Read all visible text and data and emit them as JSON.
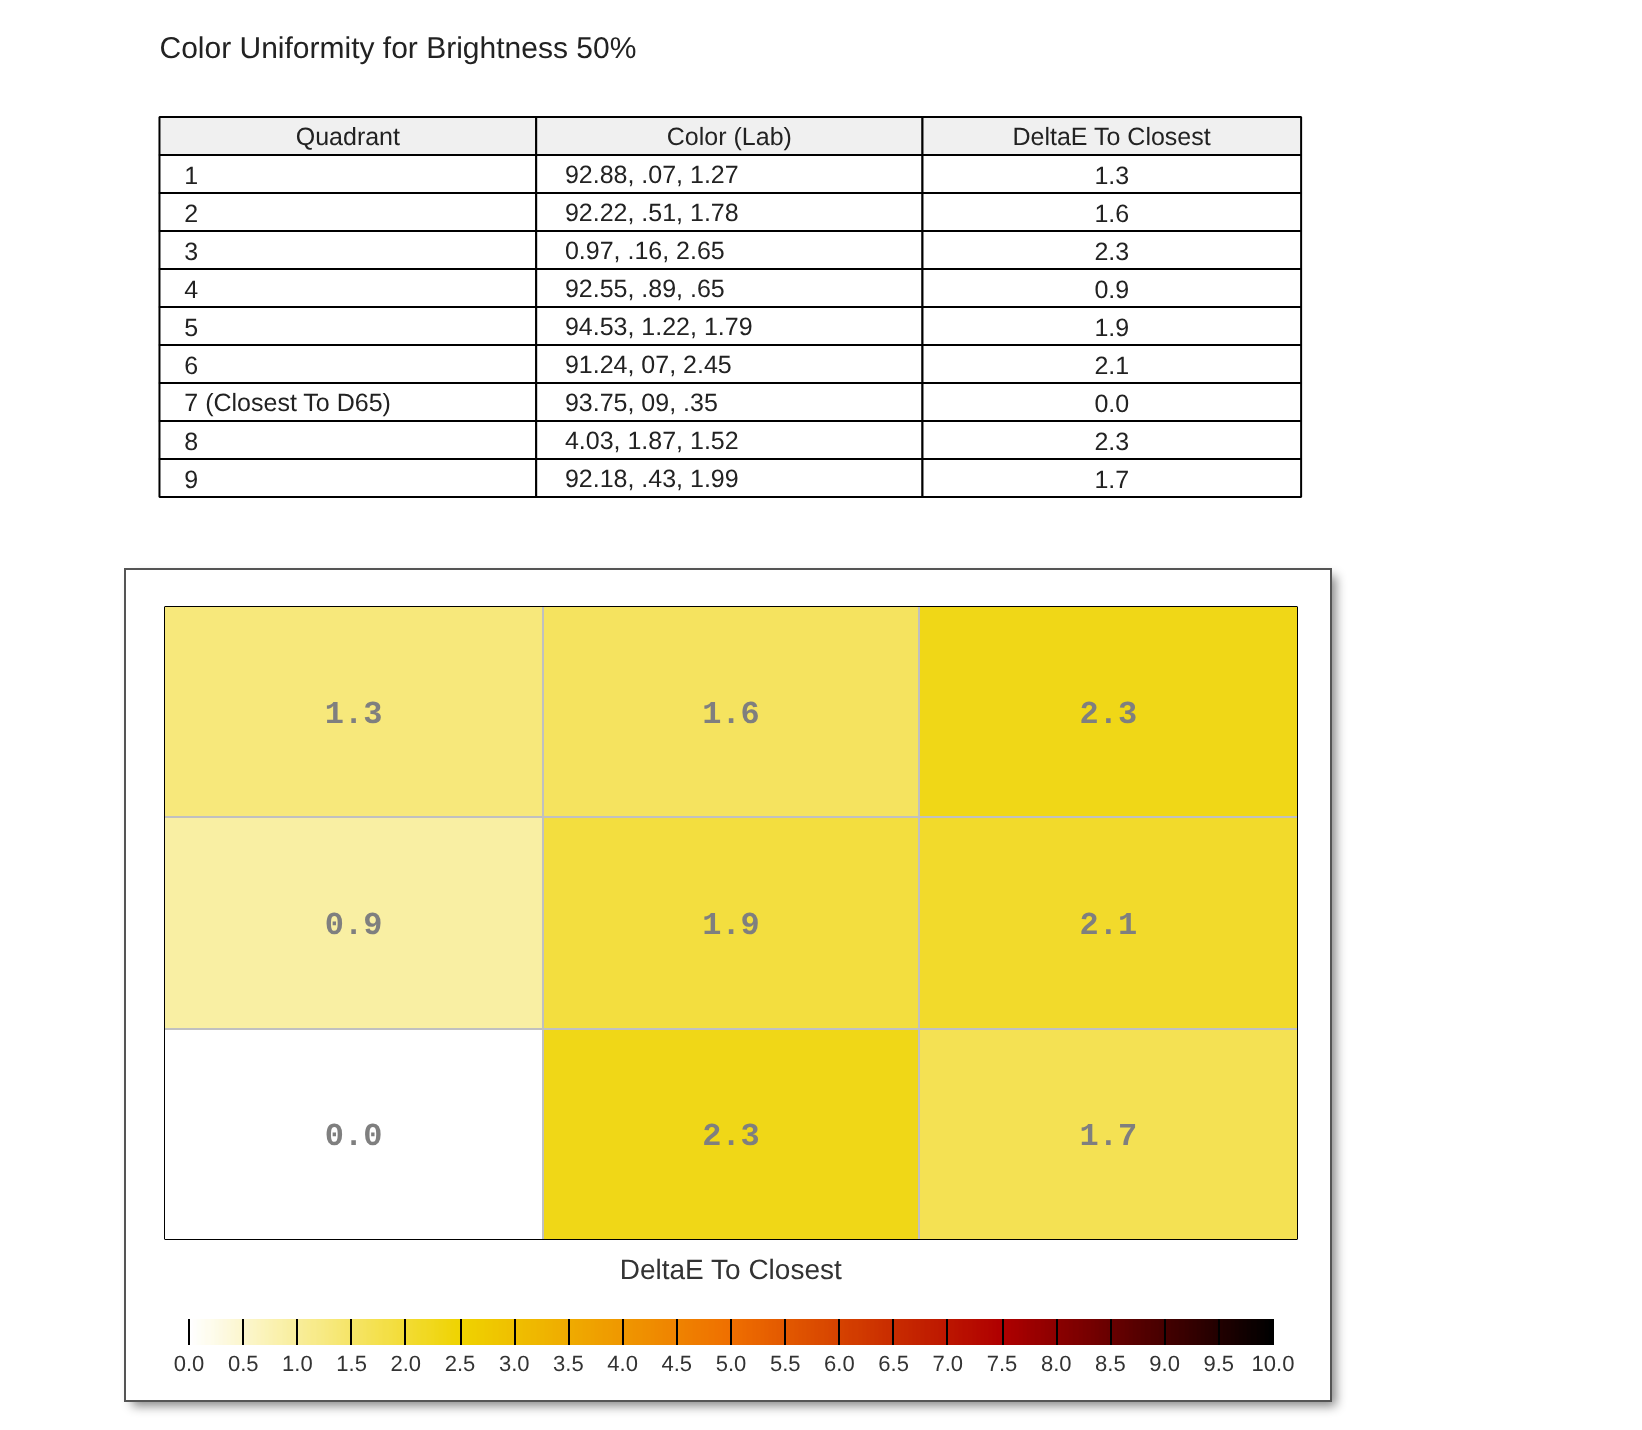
{
  "chart_data": [
    {
      "type": "other",
      "title": "Color Uniformity for Brightness 50%",
      "categories": [
        "Quadrant",
        "Color (Lab)",
        "DeltaE To Closest"
      ],
      "cell_labels": [
        [
          "1",
          "92.88, .07, 1.27",
          "1.3"
        ],
        [
          "2",
          "92.22, .51, 1.78",
          "1.6"
        ],
        [
          "3",
          "0.97, .16, 2.65",
          "2.3"
        ],
        [
          "4",
          "92.55, .89, .65",
          "0.9"
        ],
        [
          "5",
          "94.53, 1.22, 1.79",
          "1.9"
        ],
        [
          "6",
          "91.24, 07, 2.45",
          "2.1"
        ],
        [
          "7 (Closest To D65)",
          "93.75, 09, .35",
          "0.0"
        ],
        [
          "8",
          "4.03, 1.87, 1.52",
          "2.3"
        ],
        [
          "9",
          "92.18, .43, 1.99",
          "1.7"
        ]
      ]
    },
    {
      "type": "heatmap",
      "clabel": "DeltaE To Closest",
      "categories": [
        null,
        null,
        null
      ],
      "y_categories": [
        null,
        null,
        null
      ],
      "cells": [
        [
          1.3,
          1.6,
          2.3
        ],
        [
          0.9,
          1.9,
          2.1
        ],
        [
          0.0,
          2.3,
          1.7
        ]
      ],
      "cell_labels": [
        [
          "1.3",
          "1.6",
          "2.3"
        ],
        [
          "0.9",
          "1.9",
          "2.1"
        ],
        [
          "0.0",
          "2.3",
          "1.7"
        ]
      ],
      "grid": true,
      "clim": [
        0,
        10
      ],
      "cticks": [
        {
          "value": 0,
          "label": "0.0"
        },
        0.5,
        {
          "value": 1,
          "label": "1.0"
        },
        1.5,
        {
          "value": 2,
          "label": "2.0"
        },
        2.5,
        {
          "value": 3,
          "label": "3.0"
        },
        3.5,
        {
          "value": 4,
          "label": "4.0"
        },
        4.5,
        {
          "value": 5,
          "label": "5.0"
        },
        5.5,
        {
          "value": 6,
          "label": "6.0"
        },
        6.5,
        {
          "value": 7,
          "label": "7.0"
        },
        7.5,
        {
          "value": 8,
          "label": "8.0"
        },
        8.5,
        {
          "value": 9,
          "label": "9.0"
        },
        9.5,
        {
          "value": 10,
          "label": "10.0"
        }
      ],
      "colors": [
        "#ffffff",
        "#efd300",
        "#ef6f00",
        "#b00000",
        "#000000"
      ]
    }
  ]
}
